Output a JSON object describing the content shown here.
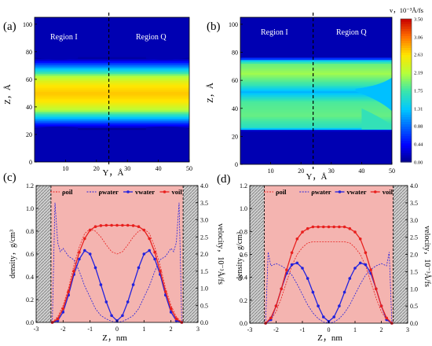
{
  "chart_data": [
    {
      "panel_label": "(a)",
      "type": "heatmap",
      "xlabel": "Y，Å",
      "ylabel": "Z，Å",
      "xlim": [
        0,
        50
      ],
      "ylim": [
        0,
        105
      ],
      "xticks": [
        "10",
        "20",
        "30",
        "40",
        "50"
      ],
      "yticks": [
        "0",
        "20",
        "40",
        "60",
        "80",
        "100"
      ],
      "divider_y": 24,
      "region_labels": [
        "Region I",
        "Region Q"
      ],
      "velocity_profile": [
        {
          "z": 0,
          "v": 0.0
        },
        {
          "z": 24,
          "v": 0.0
        },
        {
          "z": 28,
          "v": 0.6
        },
        {
          "z": 33,
          "v": 1.4
        },
        {
          "z": 38,
          "v": 2.2
        },
        {
          "z": 44,
          "v": 2.6
        },
        {
          "z": 50,
          "v": 2.75
        },
        {
          "z": 56,
          "v": 2.6
        },
        {
          "z": 62,
          "v": 2.2
        },
        {
          "z": 67,
          "v": 1.4
        },
        {
          "z": 72,
          "v": 0.6
        },
        {
          "z": 76,
          "v": 0.0
        },
        {
          "z": 105,
          "v": 0.0
        }
      ]
    },
    {
      "panel_label": "(b)",
      "type": "heatmap",
      "xlabel": "Y，Å",
      "ylabel": "Z，Å",
      "xlim": [
        0,
        50
      ],
      "ylim": [
        0,
        105
      ],
      "xticks": [
        "10",
        "20",
        "30",
        "40",
        "50"
      ],
      "yticks": [
        "0",
        "20",
        "40",
        "60",
        "80",
        "100"
      ],
      "divider_y": 24,
      "region_labels": [
        "Region I",
        "Region Q"
      ],
      "velocity_profile": [
        {
          "z": 0,
          "v": 0.0
        },
        {
          "z": 24,
          "v": 0.0
        },
        {
          "z": 26,
          "v": 1.6
        },
        {
          "z": 35,
          "v": 1.9
        },
        {
          "z": 45,
          "v": 1.8
        },
        {
          "z": 52,
          "v": 1.2
        },
        {
          "z": 57,
          "v": 1.7
        },
        {
          "z": 65,
          "v": 2.1
        },
        {
          "z": 72,
          "v": 1.9
        },
        {
          "z": 75,
          "v": 1.2
        },
        {
          "z": 76,
          "v": 0.0
        },
        {
          "z": 105,
          "v": 0.0
        }
      ],
      "colorbar": {
        "title": "v，10⁻³Å/fs",
        "ticks": [
          "3.50",
          "3.06",
          "2.63",
          "2.19",
          "1.75",
          "1.31",
          "0.88",
          "0.44",
          "0.00"
        ],
        "range": [
          0,
          3.5
        ]
      }
    },
    {
      "panel_label": "(c)",
      "type": "line",
      "xlabel": "Z，nm",
      "ylabel": "density，g/cm³",
      "y2label": "velocity，10⁻³Å/fs",
      "xlim": [
        -3,
        3
      ],
      "ylim": [
        0,
        1.2
      ],
      "y2lim": [
        0,
        4.0
      ],
      "xticks": [
        "-3",
        "-2",
        "-1",
        "0",
        "1",
        "2",
        "3"
      ],
      "yticks": [
        "0.0",
        "0.2",
        "0.4",
        "0.6",
        "0.8",
        "1.0",
        "1.2"
      ],
      "y2ticks": [
        "0.0",
        "0.5",
        "1.0",
        "1.5",
        "2.0",
        "2.5",
        "3.0",
        "3.5",
        "4.0"
      ],
      "wall_z": 2.45,
      "legend": [
        "ρoil",
        "ρwater",
        "vwater",
        "voil"
      ],
      "rho_oil": [
        [
          -2.4,
          0.0
        ],
        [
          -2.2,
          0.05
        ],
        [
          -2.0,
          0.15
        ],
        [
          -1.8,
          0.3
        ],
        [
          -1.6,
          0.5
        ],
        [
          -1.4,
          0.66
        ],
        [
          -1.2,
          0.78
        ],
        [
          -1.0,
          0.82
        ],
        [
          -0.8,
          0.8
        ],
        [
          -0.6,
          0.75
        ],
        [
          -0.4,
          0.68
        ],
        [
          -0.2,
          0.62
        ],
        [
          0.0,
          0.6
        ],
        [
          0.2,
          0.62
        ],
        [
          0.4,
          0.68
        ],
        [
          0.6,
          0.75
        ],
        [
          0.8,
          0.8
        ],
        [
          1.0,
          0.82
        ],
        [
          1.2,
          0.78
        ],
        [
          1.4,
          0.66
        ],
        [
          1.6,
          0.5
        ],
        [
          1.8,
          0.3
        ],
        [
          2.0,
          0.15
        ],
        [
          2.2,
          0.05
        ],
        [
          2.4,
          0.0
        ]
      ],
      "rho_water": [
        [
          -2.4,
          0.0
        ],
        [
          -2.3,
          1.05
        ],
        [
          -2.2,
          0.7
        ],
        [
          -2.1,
          0.62
        ],
        [
          -2.0,
          0.65
        ],
        [
          -1.8,
          0.58
        ],
        [
          -1.6,
          0.55
        ],
        [
          -1.4,
          0.45
        ],
        [
          -1.2,
          0.32
        ],
        [
          -1.0,
          0.22
        ],
        [
          -0.8,
          0.12
        ],
        [
          -0.6,
          0.06
        ],
        [
          -0.4,
          0.03
        ],
        [
          -0.2,
          0.01
        ],
        [
          0.0,
          0.0
        ],
        [
          0.2,
          0.01
        ],
        [
          0.4,
          0.03
        ],
        [
          0.6,
          0.06
        ],
        [
          0.8,
          0.12
        ],
        [
          1.0,
          0.22
        ],
        [
          1.2,
          0.32
        ],
        [
          1.4,
          0.45
        ],
        [
          1.6,
          0.55
        ],
        [
          1.8,
          0.58
        ],
        [
          2.0,
          0.65
        ],
        [
          2.1,
          0.62
        ],
        [
          2.2,
          0.7
        ],
        [
          2.3,
          1.05
        ],
        [
          2.4,
          0.0
        ]
      ],
      "v_water": [
        [
          -2.4,
          0.0
        ],
        [
          -2.2,
          0.05
        ],
        [
          -2.0,
          0.3
        ],
        [
          -1.8,
          0.8
        ],
        [
          -1.6,
          1.4
        ],
        [
          -1.4,
          1.85
        ],
        [
          -1.2,
          2.1
        ],
        [
          -1.0,
          2.0
        ],
        [
          -0.8,
          1.6
        ],
        [
          -0.6,
          1.1
        ],
        [
          -0.4,
          0.6
        ],
        [
          -0.2,
          0.2
        ],
        [
          0.0,
          0.05
        ],
        [
          0.2,
          0.2
        ],
        [
          0.4,
          0.6
        ],
        [
          0.6,
          1.1
        ],
        [
          0.8,
          1.6
        ],
        [
          1.0,
          2.0
        ],
        [
          1.2,
          2.1
        ],
        [
          1.4,
          1.85
        ],
        [
          1.6,
          1.4
        ],
        [
          1.8,
          0.8
        ],
        [
          2.0,
          0.3
        ],
        [
          2.2,
          0.05
        ],
        [
          2.4,
          0.0
        ]
      ],
      "v_oil": [
        [
          -2.4,
          0.0
        ],
        [
          -2.2,
          0.1
        ],
        [
          -2.0,
          0.4
        ],
        [
          -1.8,
          0.9
        ],
        [
          -1.6,
          1.5
        ],
        [
          -1.4,
          2.05
        ],
        [
          -1.2,
          2.45
        ],
        [
          -1.0,
          2.7
        ],
        [
          -0.8,
          2.8
        ],
        [
          -0.6,
          2.83
        ],
        [
          -0.4,
          2.84
        ],
        [
          -0.2,
          2.84
        ],
        [
          0.0,
          2.84
        ],
        [
          0.2,
          2.84
        ],
        [
          0.4,
          2.84
        ],
        [
          0.6,
          2.83
        ],
        [
          0.8,
          2.8
        ],
        [
          1.0,
          2.7
        ],
        [
          1.2,
          2.45
        ],
        [
          1.4,
          2.05
        ],
        [
          1.6,
          1.5
        ],
        [
          1.8,
          0.9
        ],
        [
          2.0,
          0.4
        ],
        [
          2.2,
          0.1
        ],
        [
          2.4,
          0.0
        ]
      ]
    },
    {
      "panel_label": "(d)",
      "type": "line",
      "xlabel": "Z，nm",
      "ylabel": "density，g/cm³",
      "y2label": "velocity，10⁻³Å/fs",
      "xlim": [
        -3,
        3
      ],
      "ylim": [
        0,
        1.2
      ],
      "y2lim": [
        0,
        4.0
      ],
      "xticks": [
        "-3",
        "-2",
        "-1",
        "0",
        "1",
        "2",
        "3"
      ],
      "yticks": [
        "0.0",
        "0.2",
        "0.4",
        "0.6",
        "0.8",
        "1.0",
        "1.2"
      ],
      "y2ticks": [
        "0.0",
        "0.5",
        "1.0",
        "1.5",
        "2.0",
        "2.5",
        "3.0",
        "3.5",
        "4.0"
      ],
      "wall_z": 2.45,
      "legend": [
        "ρoil",
        "ρwater",
        "vwater",
        "voil"
      ],
      "rho_oil": [
        [
          -2.4,
          0.0
        ],
        [
          -2.2,
          0.03
        ],
        [
          -2.0,
          0.1
        ],
        [
          -1.8,
          0.22
        ],
        [
          -1.6,
          0.36
        ],
        [
          -1.4,
          0.5
        ],
        [
          -1.2,
          0.6
        ],
        [
          -1.0,
          0.66
        ],
        [
          -0.8,
          0.7
        ],
        [
          -0.6,
          0.71
        ],
        [
          -0.4,
          0.71
        ],
        [
          -0.2,
          0.71
        ],
        [
          0.0,
          0.71
        ],
        [
          0.2,
          0.71
        ],
        [
          0.4,
          0.71
        ],
        [
          0.6,
          0.71
        ],
        [
          0.8,
          0.7
        ],
        [
          1.0,
          0.66
        ],
        [
          1.2,
          0.6
        ],
        [
          1.4,
          0.5
        ],
        [
          1.6,
          0.36
        ],
        [
          1.8,
          0.22
        ],
        [
          2.0,
          0.1
        ],
        [
          2.2,
          0.03
        ],
        [
          2.4,
          0.0
        ]
      ],
      "rho_water": [
        [
          -2.4,
          0.0
        ],
        [
          -2.3,
          0.62
        ],
        [
          -2.2,
          0.5
        ],
        [
          -2.0,
          0.52
        ],
        [
          -1.8,
          0.5
        ],
        [
          -1.6,
          0.47
        ],
        [
          -1.4,
          0.42
        ],
        [
          -1.2,
          0.34
        ],
        [
          -1.0,
          0.25
        ],
        [
          -0.8,
          0.16
        ],
        [
          -0.6,
          0.09
        ],
        [
          -0.4,
          0.04
        ],
        [
          -0.2,
          0.01
        ],
        [
          0.0,
          0.0
        ],
        [
          0.2,
          0.01
        ],
        [
          0.4,
          0.04
        ],
        [
          0.6,
          0.09
        ],
        [
          0.8,
          0.16
        ],
        [
          1.0,
          0.25
        ],
        [
          1.2,
          0.34
        ],
        [
          1.4,
          0.42
        ],
        [
          1.6,
          0.47
        ],
        [
          1.8,
          0.5
        ],
        [
          2.0,
          0.52
        ],
        [
          2.2,
          0.5
        ],
        [
          2.3,
          0.62
        ],
        [
          2.4,
          0.0
        ]
      ],
      "v_water": [
        [
          -2.4,
          0.0
        ],
        [
          -2.2,
          0.1
        ],
        [
          -2.0,
          0.5
        ],
        [
          -1.8,
          1.0
        ],
        [
          -1.6,
          1.45
        ],
        [
          -1.4,
          1.7
        ],
        [
          -1.2,
          1.75
        ],
        [
          -1.0,
          1.6
        ],
        [
          -0.8,
          1.3
        ],
        [
          -0.6,
          0.9
        ],
        [
          -0.4,
          0.5
        ],
        [
          -0.2,
          0.18
        ],
        [
          0.0,
          0.05
        ],
        [
          0.2,
          0.18
        ],
        [
          0.4,
          0.5
        ],
        [
          0.6,
          0.9
        ],
        [
          0.8,
          1.3
        ],
        [
          1.0,
          1.6
        ],
        [
          1.2,
          1.75
        ],
        [
          1.4,
          1.7
        ],
        [
          1.6,
          1.45
        ],
        [
          1.8,
          1.0
        ],
        [
          2.0,
          0.5
        ],
        [
          2.2,
          0.1
        ],
        [
          2.4,
          0.0
        ]
      ],
      "v_oil": [
        [
          -2.4,
          0.0
        ],
        [
          -2.2,
          0.15
        ],
        [
          -2.0,
          0.5
        ],
        [
          -1.8,
          1.0
        ],
        [
          -1.6,
          1.55
        ],
        [
          -1.4,
          2.05
        ],
        [
          -1.2,
          2.45
        ],
        [
          -1.0,
          2.65
        ],
        [
          -0.8,
          2.75
        ],
        [
          -0.6,
          2.8
        ],
        [
          -0.4,
          2.8
        ],
        [
          -0.2,
          2.8
        ],
        [
          0.0,
          2.8
        ],
        [
          0.2,
          2.8
        ],
        [
          0.4,
          2.8
        ],
        [
          0.6,
          2.8
        ],
        [
          0.8,
          2.75
        ],
        [
          1.0,
          2.65
        ],
        [
          1.2,
          2.45
        ],
        [
          1.4,
          2.05
        ],
        [
          1.6,
          1.55
        ],
        [
          1.8,
          1.0
        ],
        [
          2.0,
          0.5
        ],
        [
          2.2,
          0.15
        ],
        [
          2.4,
          0.0
        ]
      ]
    }
  ],
  "colors": {
    "oil": "#e8201e",
    "water": "#2222dd",
    "panel_bg": "#f4b4b0",
    "wall": "#bdbdbd"
  }
}
